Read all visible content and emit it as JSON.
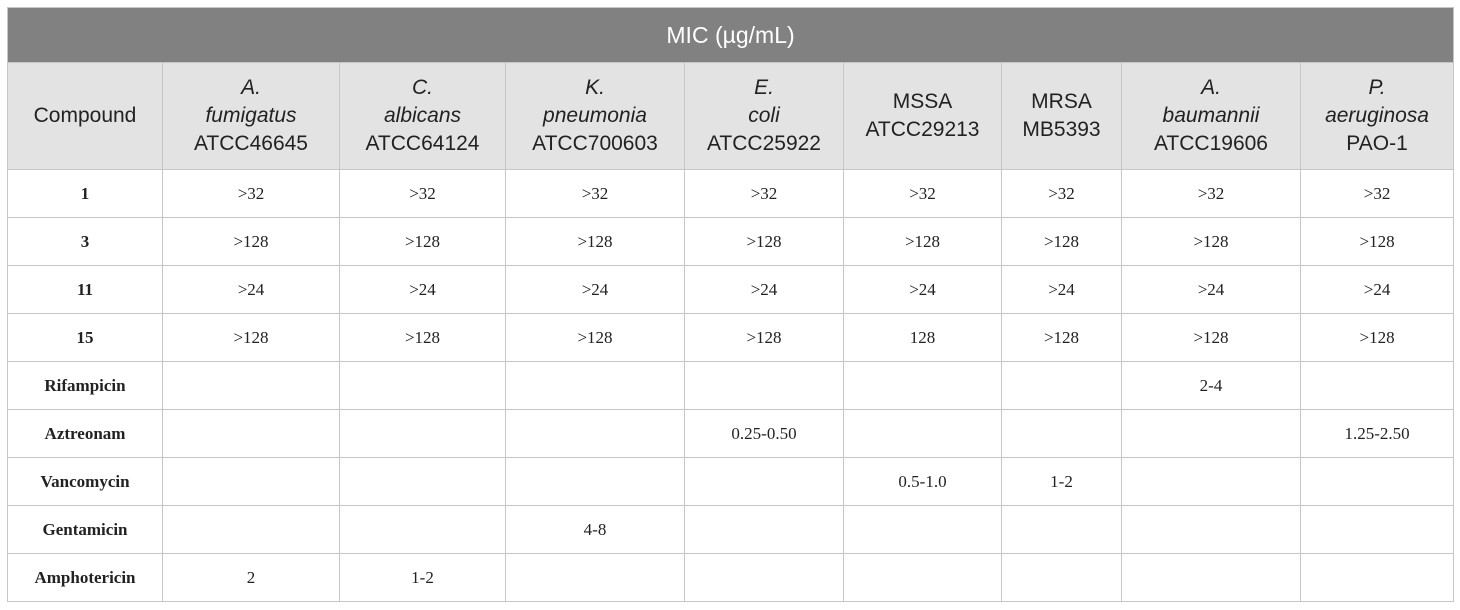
{
  "table": {
    "title": "MIC (µg/mL)",
    "compound_header": "Compound",
    "columns": [
      {
        "species": [
          "A.",
          "fumigatus"
        ],
        "strain": "ATCC46645"
      },
      {
        "species": [
          "C.",
          "albicans"
        ],
        "strain": "ATCC64124"
      },
      {
        "species": [
          "K.",
          "pneumonia"
        ],
        "strain": "ATCC700603"
      },
      {
        "species": [
          "E.",
          "coli"
        ],
        "strain": "ATCC25922"
      },
      {
        "species": [],
        "strain": "MSSA ATCC29213"
      },
      {
        "species": [],
        "strain": "MRSA MB5393"
      },
      {
        "species": [
          "A.",
          "baumannii"
        ],
        "strain": "ATCC19606"
      },
      {
        "species": [
          "P.",
          "aeruginosa"
        ],
        "strain": "PAO-1"
      }
    ],
    "rows": [
      {
        "name": "1",
        "cells": [
          ">32",
          ">32",
          ">32",
          ">32",
          ">32",
          ">32",
          ">32",
          ">32"
        ]
      },
      {
        "name": "3",
        "cells": [
          ">128",
          ">128",
          ">128",
          ">128",
          ">128",
          ">128",
          ">128",
          ">128"
        ]
      },
      {
        "name": "11",
        "cells": [
          ">24",
          ">24",
          ">24",
          ">24",
          ">24",
          ">24",
          ">24",
          ">24"
        ]
      },
      {
        "name": "15",
        "cells": [
          ">128",
          ">128",
          ">128",
          ">128",
          "128",
          ">128",
          ">128",
          ">128"
        ]
      },
      {
        "name": "Rifampicin",
        "cells": [
          "",
          "",
          "",
          "",
          "",
          "",
          "2-4",
          ""
        ]
      },
      {
        "name": "Aztreonam",
        "cells": [
          "",
          "",
          "",
          "0.25-0.50",
          "",
          "",
          "",
          "1.25-2.50"
        ]
      },
      {
        "name": "Vancomycin",
        "cells": [
          "",
          "",
          "",
          "",
          "0.5-1.0",
          "1-2",
          "",
          ""
        ]
      },
      {
        "name": "Gentamicin",
        "cells": [
          "",
          "",
          "4-8",
          "",
          "",
          "",
          "",
          ""
        ]
      },
      {
        "name": "Amphotericin",
        "cells": [
          "2",
          "1-2",
          "",
          "",
          "",
          "",
          "",
          ""
        ]
      }
    ]
  }
}
